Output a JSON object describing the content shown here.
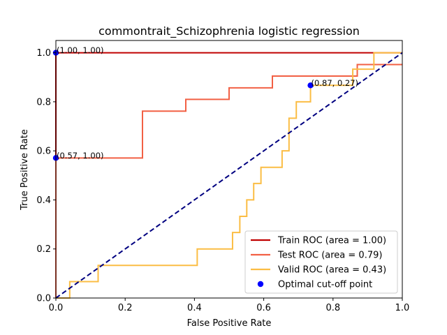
{
  "chart_data": {
    "type": "line",
    "title": "commontrait_Schizophrenia logistic regression",
    "xlabel": "False Positive Rate",
    "ylabel": "True Positive Rate",
    "xlim": [
      0.0,
      1.0
    ],
    "ylim": [
      0.0,
      1.05
    ],
    "xticks": [
      "0.0",
      "0.2",
      "0.4",
      "0.6",
      "0.8",
      "1.0"
    ],
    "yticks": [
      "0.0",
      "0.2",
      "0.4",
      "0.6",
      "0.8",
      "1.0"
    ],
    "grid": false,
    "legend_position": "lower-right",
    "series": [
      {
        "name": "Train ROC (area = 1.00)",
        "color": "#c00000",
        "x": [
          0.0,
          0.0,
          0.0,
          1.0
        ],
        "y": [
          0.0,
          0.0,
          1.0,
          1.0
        ]
      },
      {
        "name": "Test ROC (area = 0.79)",
        "color": "#f26044",
        "x": [
          0.0,
          0.0,
          0.25,
          0.25,
          0.375,
          0.375,
          0.5,
          0.5,
          0.625,
          0.625,
          0.87,
          0.87,
          1.0
        ],
        "y": [
          0.0,
          0.571,
          0.571,
          0.762,
          0.762,
          0.81,
          0.81,
          0.857,
          0.857,
          0.905,
          0.905,
          0.952,
          0.952
        ]
      },
      {
        "name": "Valid ROC (area = 0.43)",
        "color": "#fbbd44",
        "x": [
          0.0,
          0.04,
          0.04,
          0.122,
          0.122,
          0.408,
          0.408,
          0.51,
          0.51,
          0.531,
          0.531,
          0.551,
          0.551,
          0.571,
          0.571,
          0.592,
          0.592,
          0.653,
          0.653,
          0.673,
          0.673,
          0.694,
          0.694,
          0.735,
          0.735,
          0.857,
          0.857,
          0.878,
          0.878,
          0.918,
          0.918,
          1.0
        ],
        "y": [
          0.0,
          0.0,
          0.067,
          0.067,
          0.133,
          0.133,
          0.2,
          0.2,
          0.267,
          0.267,
          0.333,
          0.333,
          0.4,
          0.4,
          0.467,
          0.467,
          0.533,
          0.533,
          0.6,
          0.6,
          0.733,
          0.733,
          0.8,
          0.8,
          0.867,
          0.867,
          0.933,
          0.933,
          0.933,
          0.933,
          1.0,
          1.0
        ]
      }
    ],
    "chance_line": {
      "color": "#000080",
      "x": [
        0.0,
        1.0
      ],
      "y": [
        0.0,
        1.0
      ]
    },
    "optimal_points": {
      "name": "Optimal cut-off point",
      "color": "#0000ff",
      "points": [
        {
          "x": 0.0,
          "y": 1.0,
          "label": "(1.00, 1.00)"
        },
        {
          "x": 0.0,
          "y": 0.571,
          "label": "(0.57, 1.00)"
        },
        {
          "x": 0.735,
          "y": 0.867,
          "label": "(0.87, 0.27)"
        }
      ]
    }
  }
}
